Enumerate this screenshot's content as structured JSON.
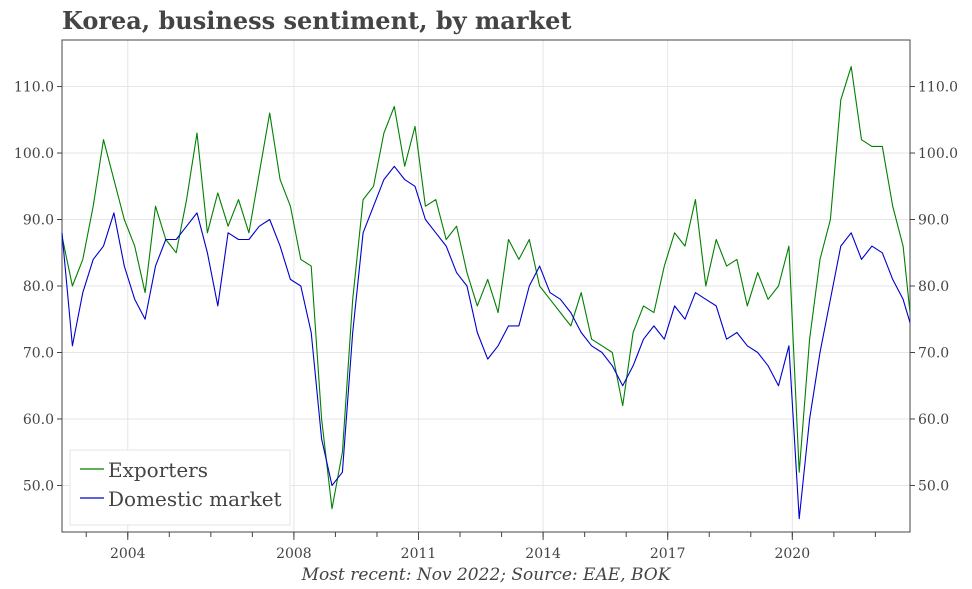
{
  "chart_data": {
    "type": "line",
    "title": "Korea, business sentiment, by market",
    "caption": "Most recent: Nov 2022; Source: EAE, BOK",
    "xlabel": "",
    "ylabel": "",
    "x_start": "2002-06",
    "x_end": "2022-11",
    "x_ticks": [
      "2004",
      "2008",
      "2011",
      "2014",
      "2017",
      "2020"
    ],
    "y_ticks": [
      "50.0",
      "60.0",
      "70.0",
      "80.0",
      "90.0",
      "100.0",
      "110.0"
    ],
    "ylim": [
      43,
      117
    ],
    "grid": true,
    "legend_position": "bottom-left",
    "series": [
      {
        "name": "Exporters",
        "color": "#008000",
        "x": [
          "2002-06",
          "2002-09",
          "2002-12",
          "2003-03",
          "2003-06",
          "2003-09",
          "2003-12",
          "2004-03",
          "2004-06",
          "2004-09",
          "2004-12",
          "2005-03",
          "2005-06",
          "2005-09",
          "2005-12",
          "2006-03",
          "2006-06",
          "2006-09",
          "2006-12",
          "2007-03",
          "2007-06",
          "2007-09",
          "2007-12",
          "2008-03",
          "2008-06",
          "2008-09",
          "2008-12",
          "2009-03",
          "2009-06",
          "2009-09",
          "2009-12",
          "2010-03",
          "2010-06",
          "2010-09",
          "2010-12",
          "2011-03",
          "2011-06",
          "2011-09",
          "2011-12",
          "2012-03",
          "2012-06",
          "2012-09",
          "2012-12",
          "2013-03",
          "2013-06",
          "2013-09",
          "2013-12",
          "2014-03",
          "2014-06",
          "2014-09",
          "2014-12",
          "2015-03",
          "2015-06",
          "2015-09",
          "2015-12",
          "2016-03",
          "2016-06",
          "2016-09",
          "2016-12",
          "2017-03",
          "2017-06",
          "2017-09",
          "2017-12",
          "2018-03",
          "2018-06",
          "2018-09",
          "2018-12",
          "2019-03",
          "2019-06",
          "2019-09",
          "2019-12",
          "2020-03",
          "2020-06",
          "2020-09",
          "2020-12",
          "2021-03",
          "2021-06",
          "2021-09",
          "2021-12",
          "2022-03",
          "2022-06",
          "2022-09",
          "2022-11"
        ],
        "values": [
          87.5,
          80.0,
          84.0,
          92.0,
          102.0,
          96.0,
          90.0,
          86.0,
          79.0,
          92.0,
          87.0,
          85.0,
          93.0,
          103.0,
          88.0,
          94.0,
          89.0,
          93.0,
          88.0,
          97.0,
          106.0,
          96.0,
          92.0,
          84.0,
          83.0,
          60.0,
          46.5,
          55.0,
          78.0,
          93.0,
          95.0,
          103.0,
          107.0,
          98.0,
          104.0,
          92.0,
          93.0,
          87.0,
          89.0,
          82.0,
          77.0,
          81.0,
          76.0,
          87.0,
          84.0,
          87.0,
          80.0,
          78.0,
          76.0,
          74.0,
          79.0,
          72.0,
          71.0,
          70.0,
          62.0,
          73.0,
          77.0,
          76.0,
          83.0,
          88.0,
          86.0,
          93.0,
          80.0,
          87.0,
          83.0,
          84.0,
          77.0,
          82.0,
          78.0,
          80.0,
          86.0,
          52.0,
          72.0,
          84.0,
          90.0,
          108.0,
          113.0,
          102.0,
          101.0,
          101.0,
          92.0,
          86.0,
          76.0
        ]
      },
      {
        "name": "Domestic market",
        "color": "#0000cd",
        "x": [
          "2002-06",
          "2002-09",
          "2002-12",
          "2003-03",
          "2003-06",
          "2003-09",
          "2003-12",
          "2004-03",
          "2004-06",
          "2004-09",
          "2004-12",
          "2005-03",
          "2005-06",
          "2005-09",
          "2005-12",
          "2006-03",
          "2006-06",
          "2006-09",
          "2006-12",
          "2007-03",
          "2007-06",
          "2007-09",
          "2007-12",
          "2008-03",
          "2008-06",
          "2008-09",
          "2008-12",
          "2009-03",
          "2009-06",
          "2009-09",
          "2009-12",
          "2010-03",
          "2010-06",
          "2010-09",
          "2010-12",
          "2011-03",
          "2011-06",
          "2011-09",
          "2011-12",
          "2012-03",
          "2012-06",
          "2012-09",
          "2012-12",
          "2013-03",
          "2013-06",
          "2013-09",
          "2013-12",
          "2014-03",
          "2014-06",
          "2014-09",
          "2014-12",
          "2015-03",
          "2015-06",
          "2015-09",
          "2015-12",
          "2016-03",
          "2016-06",
          "2016-09",
          "2016-12",
          "2017-03",
          "2017-06",
          "2017-09",
          "2017-12",
          "2018-03",
          "2018-06",
          "2018-09",
          "2018-12",
          "2019-03",
          "2019-06",
          "2019-09",
          "2019-12",
          "2020-03",
          "2020-06",
          "2020-09",
          "2020-12",
          "2021-03",
          "2021-06",
          "2021-09",
          "2021-12",
          "2022-03",
          "2022-06",
          "2022-09",
          "2022-11"
        ],
        "values": [
          88.0,
          71.0,
          79.0,
          84.0,
          86.0,
          91.0,
          83.0,
          78.0,
          75.0,
          83.0,
          87.0,
          87.0,
          89.0,
          91.0,
          85.0,
          77.0,
          88.0,
          87.0,
          87.0,
          89.0,
          90.0,
          86.0,
          81.0,
          80.0,
          73.0,
          57.0,
          50.0,
          52.0,
          73.0,
          88.0,
          92.0,
          96.0,
          98.0,
          96.0,
          95.0,
          90.0,
          88.0,
          86.0,
          82.0,
          80.0,
          73.0,
          69.0,
          71.0,
          74.0,
          74.0,
          80.0,
          83.0,
          79.0,
          78.0,
          76.0,
          73.0,
          71.0,
          70.0,
          68.0,
          65.0,
          68.0,
          72.0,
          74.0,
          72.0,
          77.0,
          75.0,
          79.0,
          78.0,
          77.0,
          72.0,
          73.0,
          71.0,
          70.0,
          68.0,
          65.0,
          71.0,
          45.0,
          60.0,
          70.0,
          78.0,
          86.0,
          88.0,
          84.0,
          86.0,
          85.0,
          81.0,
          78.0,
          74.5
        ]
      }
    ]
  }
}
